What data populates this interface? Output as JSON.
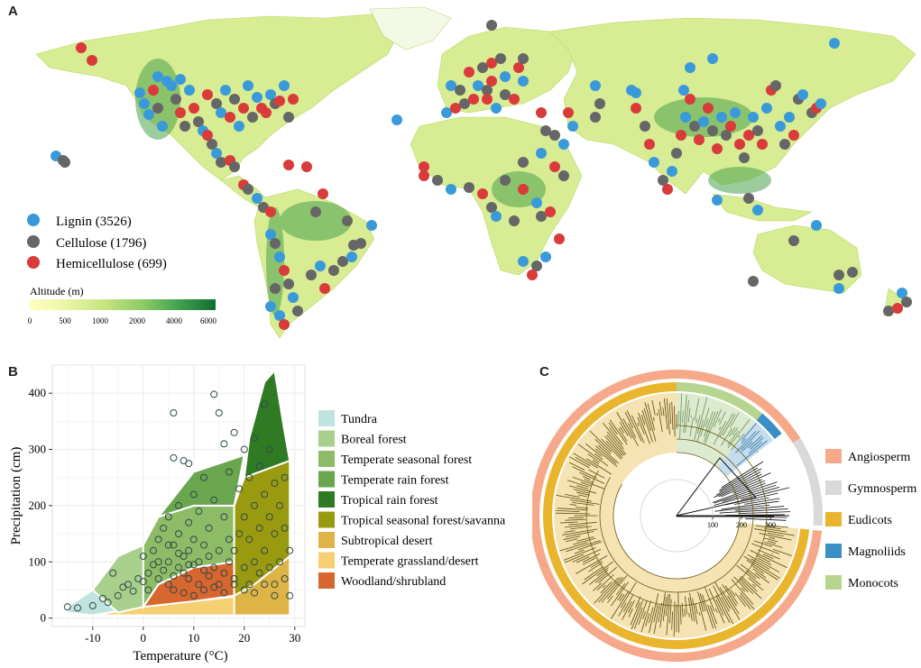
{
  "panels": {
    "a": "A",
    "b": "B",
    "c": "C"
  },
  "map": {
    "legend": [
      {
        "label": "Lignin (3526)",
        "color": "#3a9ad9"
      },
      {
        "label": "Cellulose (1796)",
        "color": "#666666"
      },
      {
        "label": "Hemicellulose (699)",
        "color": "#d93a3a"
      }
    ],
    "altitude": {
      "title": "Altitude (m)",
      "ticks": [
        "0",
        "500",
        "1000",
        "2000",
        "4000",
        "6000"
      ],
      "colors": [
        "#ffffc0",
        "#e9f5a6",
        "#c6e57f",
        "#8fcc67",
        "#42a24f",
        "#0f6e30"
      ]
    }
  },
  "chart_data": [
    {
      "type": "scatter",
      "xlabel": "Temperature (°C)",
      "ylabel": "Precipitation (cm)",
      "xlim": [
        -18,
        32
      ],
      "ylim": [
        -15,
        450
      ],
      "x_ticks": [
        "-10",
        "0",
        "10",
        "20",
        "30"
      ],
      "y_ticks": [
        "0",
        "100",
        "200",
        "300",
        "400"
      ],
      "grid": true,
      "legend_position": "right",
      "biomes": [
        {
          "name": "Tundra",
          "color": "#bfe3de"
        },
        {
          "name": "Boreal forest",
          "color": "#a9cf8c"
        },
        {
          "name": "Temperate seasonal forest",
          "color": "#8dbb66"
        },
        {
          "name": "Temperate rain forest",
          "color": "#6aa64e"
        },
        {
          "name": "Tropical rain forest",
          "color": "#2f7a23"
        },
        {
          "name": "Tropical seasonal forest/savanna",
          "color": "#9a9a10"
        },
        {
          "name": "Subtropical desert",
          "color": "#ddb445"
        },
        {
          "name": "Temperate grassland/desert",
          "color": "#f5cf72"
        },
        {
          "name": "Woodland/shrubland",
          "color": "#d8662f"
        }
      ],
      "points": [
        [
          -15,
          20
        ],
        [
          -13,
          18
        ],
        [
          -10,
          22
        ],
        [
          -8,
          35
        ],
        [
          -7,
          28
        ],
        [
          -6,
          80
        ],
        [
          -5,
          40
        ],
        [
          -4,
          55
        ],
        [
          -3,
          60
        ],
        [
          -2,
          48
        ],
        [
          -1,
          70
        ],
        [
          0,
          65
        ],
        [
          0,
          110
        ],
        [
          1,
          80
        ],
        [
          1,
          50
        ],
        [
          2,
          95
        ],
        [
          2,
          120
        ],
        [
          3,
          70
        ],
        [
          3,
          140
        ],
        [
          4,
          85
        ],
        [
          4,
          160
        ],
        [
          5,
          60
        ],
        [
          5,
          100
        ],
        [
          5,
          180
        ],
        [
          6,
          75
        ],
        [
          6,
          130
        ],
        [
          6,
          365
        ],
        [
          6,
          285
        ],
        [
          7,
          90
        ],
        [
          7,
          150
        ],
        [
          7,
          200
        ],
        [
          8,
          80
        ],
        [
          8,
          110
        ],
        [
          8,
          280
        ],
        [
          9,
          70
        ],
        [
          9,
          120
        ],
        [
          9,
          170
        ],
        [
          9,
          275
        ],
        [
          10,
          95
        ],
        [
          10,
          140
        ],
        [
          10,
          220
        ],
        [
          11,
          60
        ],
        [
          11,
          100
        ],
        [
          11,
          190
        ],
        [
          12,
          85
        ],
        [
          12,
          130
        ],
        [
          12,
          250
        ],
        [
          13,
          75
        ],
        [
          13,
          110
        ],
        [
          13,
          160
        ],
        [
          14,
          90
        ],
        [
          14,
          210
        ],
        [
          14,
          398
        ],
        [
          15,
          60
        ],
        [
          15,
          120
        ],
        [
          15,
          365
        ],
        [
          16,
          80
        ],
        [
          16,
          180
        ],
        [
          16,
          310
        ],
        [
          17,
          100
        ],
        [
          17,
          140
        ],
        [
          17,
          260
        ],
        [
          18,
          70
        ],
        [
          18,
          120
        ],
        [
          18,
          330
        ],
        [
          19,
          150
        ],
        [
          19,
          230
        ],
        [
          20,
          90
        ],
        [
          20,
          180
        ],
        [
          20,
          300
        ],
        [
          21,
          60
        ],
        [
          21,
          140
        ],
        [
          21,
          250
        ],
        [
          22,
          100
        ],
        [
          22,
          200
        ],
        [
          22,
          320
        ],
        [
          23,
          80
        ],
        [
          23,
          160
        ],
        [
          23,
          270
        ],
        [
          24,
          120
        ],
        [
          24,
          220
        ],
        [
          24,
          380
        ],
        [
          25,
          90
        ],
        [
          25,
          180
        ],
        [
          25,
          300
        ],
        [
          26,
          60
        ],
        [
          26,
          150
        ],
        [
          26,
          240
        ],
        [
          27,
          100
        ],
        [
          27,
          200
        ],
        [
          28,
          70
        ],
        [
          28,
          160
        ],
        [
          28,
          250
        ],
        [
          29,
          40
        ],
        [
          29,
          120
        ],
        [
          10,
          40
        ],
        [
          12,
          50
        ],
        [
          14,
          55
        ],
        [
          16,
          45
        ],
        [
          18,
          60
        ],
        [
          6,
          50
        ],
        [
          8,
          45
        ],
        [
          20,
          50
        ],
        [
          22,
          45
        ],
        [
          24,
          60
        ],
        [
          26,
          40
        ],
        [
          3,
          100
        ],
        [
          5,
          130
        ],
        [
          7,
          115
        ],
        [
          9,
          95
        ]
      ]
    }
  ],
  "phylo": {
    "axis_ticks": [
      "100",
      "200",
      "300"
    ],
    "legend": [
      {
        "label": "Angiosperm",
        "color": "#f6a98a"
      },
      {
        "label": "Gymnosperm",
        "color": "#d9d9d9"
      },
      {
        "label": "Eudicots",
        "color": "#e8b52d"
      },
      {
        "label": "Magnoliids",
        "color": "#3a8fc4"
      },
      {
        "label": "Monocots",
        "color": "#b6d58f"
      }
    ]
  }
}
